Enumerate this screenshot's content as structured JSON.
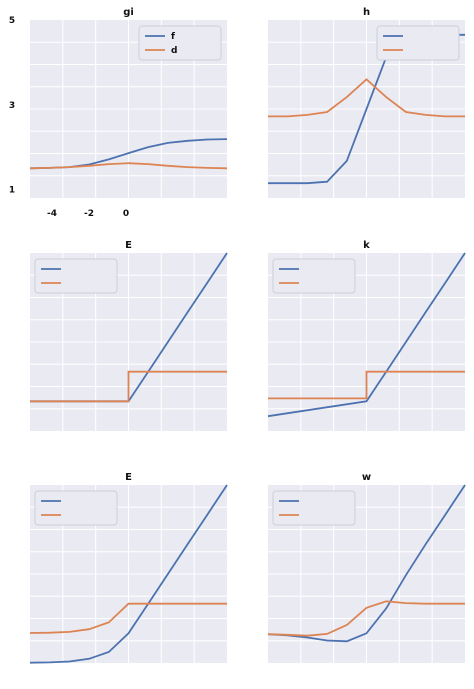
{
  "chart_data": [
    {
      "type": "line",
      "title": "gi",
      "xlim": [
        -5,
        5
      ],
      "ylim": [
        0.8,
        5
      ],
      "yticks": [
        1,
        3,
        5
      ],
      "xticks": [
        -4,
        -2,
        0
      ],
      "grid": true,
      "legend_position": "top-right",
      "series": [
        {
          "name": "f",
          "color": "#4c72b0",
          "x": [
            -5,
            -4,
            -3,
            -2,
            -1,
            0,
            1,
            2,
            3,
            4,
            5
          ],
          "y": [
            1.5,
            1.51,
            1.53,
            1.59,
            1.71,
            1.86,
            2.0,
            2.1,
            2.15,
            2.18,
            2.19
          ]
        },
        {
          "name": "d",
          "color": "#dd8452",
          "x": [
            -5,
            -4,
            -3,
            -2,
            -1,
            0,
            1,
            2,
            3,
            4,
            5
          ],
          "y": [
            1.5,
            1.51,
            1.53,
            1.56,
            1.6,
            1.62,
            1.6,
            1.56,
            1.53,
            1.51,
            1.5
          ]
        }
      ]
    },
    {
      "type": "line",
      "title": "h",
      "xlim": [
        -5,
        5
      ],
      "ylim": [
        -0.1,
        1.1
      ],
      "grid": true,
      "legend_position": "top-right",
      "series": [
        {
          "color": "#4c72b0",
          "x": [
            -5,
            -4,
            -3,
            -2,
            -1,
            0,
            1,
            2,
            3,
            4,
            5
          ],
          "y": [
            0.0,
            0.0,
            0.0,
            0.01,
            0.15,
            0.5,
            0.85,
            0.99,
            1.0,
            1.0,
            1.0
          ]
        },
        {
          "color": "#dd8452",
          "x": [
            -5,
            -4,
            -3,
            -2,
            -1,
            0,
            1,
            2,
            3,
            4,
            5
          ],
          "y": [
            0.45,
            0.45,
            0.46,
            0.48,
            0.58,
            0.7,
            0.58,
            0.48,
            0.46,
            0.45,
            0.45
          ]
        }
      ]
    },
    {
      "type": "line",
      "title": "E",
      "xlim": [
        -5,
        5
      ],
      "ylim": [
        -1,
        5
      ],
      "grid": true,
      "legend_position": "top-left",
      "series": [
        {
          "color": "#4c72b0",
          "x": [
            -5,
            -4,
            -3,
            -2,
            -1,
            0,
            1,
            2,
            3,
            4,
            5
          ],
          "y": [
            0,
            0,
            0,
            0,
            0,
            0,
            1,
            2,
            3,
            4,
            5
          ]
        },
        {
          "color": "#dd8452",
          "x": [
            -5,
            0,
            0,
            5
          ],
          "y": [
            0,
            0,
            1,
            1
          ]
        }
      ]
    },
    {
      "type": "line",
      "title": "k",
      "xlim": [
        -5,
        5
      ],
      "ylim": [
        -1,
        5
      ],
      "grid": true,
      "legend_position": "top-left",
      "series": [
        {
          "color": "#4c72b0",
          "x": [
            -5,
            0,
            1,
            2,
            3,
            4,
            5
          ],
          "y": [
            -0.5,
            0,
            1,
            2,
            3,
            4,
            5
          ]
        },
        {
          "color": "#dd8452",
          "x": [
            -5,
            0,
            0,
            5
          ],
          "y": [
            0.1,
            0.1,
            1,
            1
          ]
        }
      ]
    },
    {
      "type": "line",
      "title": "E",
      "xlim": [
        -5,
        5
      ],
      "ylim": [
        -1,
        5
      ],
      "grid": true,
      "legend_position": "top-left",
      "series": [
        {
          "color": "#4c72b0",
          "x": [
            -5,
            -4,
            -3,
            -2,
            -1,
            0,
            1,
            2,
            3,
            4,
            5
          ],
          "y": [
            -0.99,
            -0.98,
            -0.95,
            -0.86,
            -0.63,
            0,
            1,
            2,
            3,
            4,
            5
          ]
        },
        {
          "color": "#dd8452",
          "x": [
            -5,
            -4,
            -3,
            -2,
            -1,
            0,
            5
          ],
          "y": [
            0.01,
            0.02,
            0.05,
            0.14,
            0.37,
            1,
            1
          ]
        }
      ]
    },
    {
      "type": "line",
      "title": "w",
      "xlim": [
        -5,
        5
      ],
      "ylim": [
        -1,
        5
      ],
      "grid": true,
      "legend_position": "top-left",
      "series": [
        {
          "color": "#4c72b0",
          "x": [
            -5,
            -4,
            -3,
            -2,
            -1,
            0,
            1,
            2,
            3,
            4,
            5
          ],
          "y": [
            -0.03,
            -0.07,
            -0.14,
            -0.24,
            -0.27,
            0,
            0.84,
            1.96,
            3,
            4,
            5
          ]
        },
        {
          "color": "#dd8452",
          "x": [
            -5,
            -4,
            -3,
            -2,
            -1,
            0,
            1,
            2,
            3,
            4,
            5
          ],
          "y": [
            -0.03,
            -0.05,
            -0.08,
            -0.02,
            0.28,
            0.86,
            1.08,
            1.02,
            1.0,
            1.0,
            1.0
          ]
        }
      ]
    }
  ]
}
